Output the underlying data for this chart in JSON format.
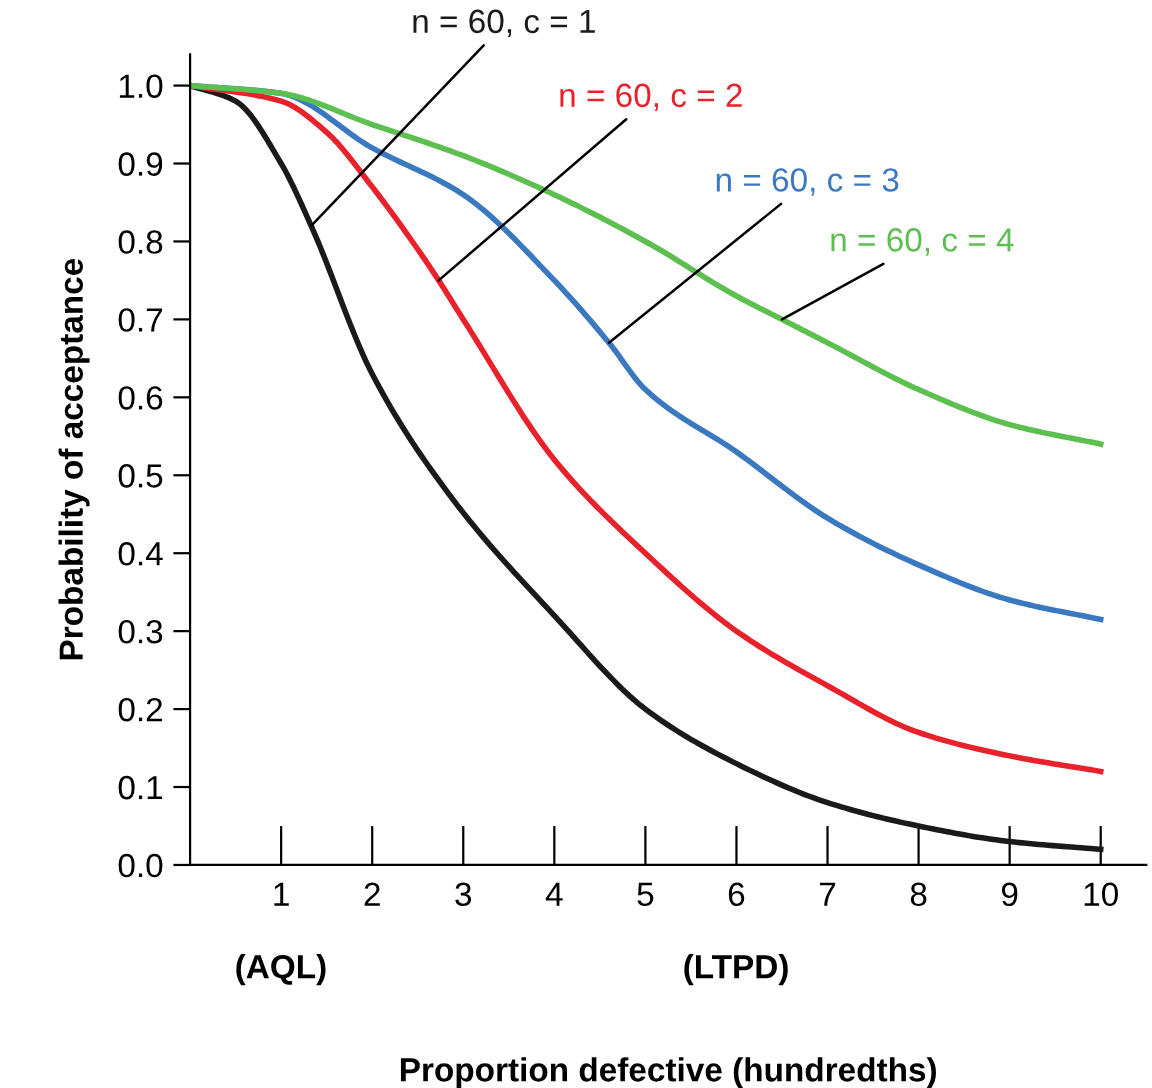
{
  "chart_data": {
    "type": "line",
    "xlabel": "Proportion defective (hundredths)",
    "ylabel": "Probability of acceptance",
    "xlim": [
      0,
      10.5
    ],
    "ylim": [
      0,
      1.04
    ],
    "xticks": [
      1,
      2,
      3,
      4,
      5,
      6,
      7,
      8,
      9,
      10
    ],
    "yticks": [
      {
        "value": 0,
        "label": "0.0"
      },
      {
        "value": 0.1,
        "label": "0.1"
      },
      {
        "value": 0.2,
        "label": "0.2"
      },
      {
        "value": 0.3,
        "label": "0.3"
      },
      {
        "value": 0.4,
        "label": "0.4"
      },
      {
        "value": 0.5,
        "label": "0.5"
      },
      {
        "value": 0.6,
        "label": "0.6"
      },
      {
        "value": 0.7,
        "label": "0.7"
      },
      {
        "value": 0.8,
        "label": "0.8"
      },
      {
        "value": 0.9,
        "label": "0.9"
      },
      {
        "value": 1,
        "label": "1.0"
      }
    ],
    "grid": false,
    "legend": false,
    "marker": "none",
    "line_style": "solid",
    "series": [
      {
        "name": "n = 60, c = 1",
        "color": "#1a1a1a",
        "x": [
          0,
          0.5,
          1,
          1.33,
          2,
          2.88,
          4,
          5,
          6,
          7,
          8,
          9,
          10
        ],
        "values": [
          1.0,
          0.98,
          0.9,
          0.82,
          0.63,
          0.47,
          0.32,
          0.2,
          0.13,
          0.08,
          0.05,
          0.03,
          0.02
        ]
      },
      {
        "name": "n = 60, c = 2",
        "color": "#e8212b",
        "x": [
          0,
          1,
          1.5,
          2,
          2.5,
          2.73,
          3,
          4,
          5,
          6,
          7,
          8,
          9,
          10
        ],
        "values": [
          1.0,
          0.98,
          0.94,
          0.87,
          0.79,
          0.75,
          0.7,
          0.52,
          0.4,
          0.3,
          0.23,
          0.17,
          0.14,
          0.12
        ]
      },
      {
        "name": "n = 60, c = 3",
        "color": "#3a78c0",
        "x": [
          0,
          1,
          2,
          3,
          4,
          4.6,
          5,
          6,
          7,
          8,
          9,
          10
        ],
        "values": [
          1.0,
          0.99,
          0.92,
          0.86,
          0.75,
          0.67,
          0.61,
          0.53,
          0.445,
          0.385,
          0.34,
          0.315
        ]
      },
      {
        "name": "n = 60, c = 4",
        "color": "#5cbf4f",
        "x": [
          0,
          1,
          2,
          3,
          4,
          5,
          6,
          6.5,
          7,
          8,
          9,
          10
        ],
        "values": [
          1.0,
          0.99,
          0.95,
          0.91,
          0.86,
          0.8,
          0.73,
          0.7,
          0.67,
          0.61,
          0.565,
          0.54
        ]
      }
    ],
    "annotations": [
      "(AQL)",
      "(LTPD)"
    ]
  }
}
